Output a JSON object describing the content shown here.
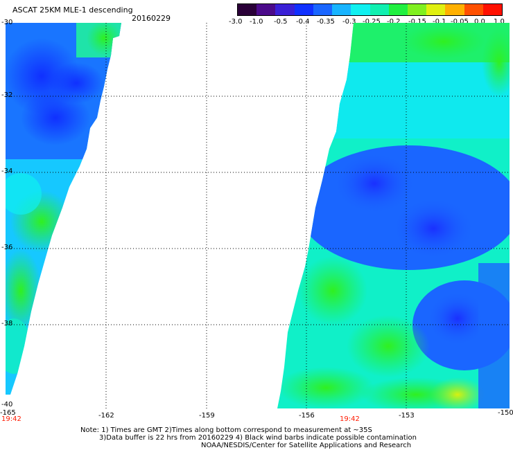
{
  "header": {
    "title": "ASCAT 25KM MLE-1 descending",
    "date": "20160229"
  },
  "colorbar": {
    "labels": [
      "-3.0",
      "-1.0",
      "-0.5",
      "-0.4",
      "-0.35",
      "-0.3",
      "-0.25",
      "-0.2",
      "-0.15",
      "-0.1",
      "-0.05",
      "0.0",
      "1.0"
    ],
    "colors": [
      "#2a0038",
      "#4b0a8a",
      "#3a20d6",
      "#1030ff",
      "#1a66ff",
      "#18b4ff",
      "#10f0f0",
      "#10f0b0",
      "#20f040",
      "#80f020",
      "#e0f010",
      "#ffb000",
      "#ff5000",
      "#ff1000"
    ]
  },
  "map": {
    "lat_labels": [
      "-30",
      "-32",
      "-34",
      "-36",
      "-38",
      "-40"
    ],
    "lon_labels": [
      "-165",
      "-162",
      "-159",
      "-156",
      "-153",
      "-150"
    ],
    "pass_times": [
      "19:42",
      "19:42"
    ]
  },
  "notes": {
    "line1": "Note: 1) Times are GMT 2)Times along bottom correspond to measurement at ~35S",
    "line2": "3)Data buffer is 22 hrs from 20160229 4) Black wind barbs indicate possible contamination",
    "line3": "NOAA/NESDIS/Center for Satellite Applications and Research"
  }
}
